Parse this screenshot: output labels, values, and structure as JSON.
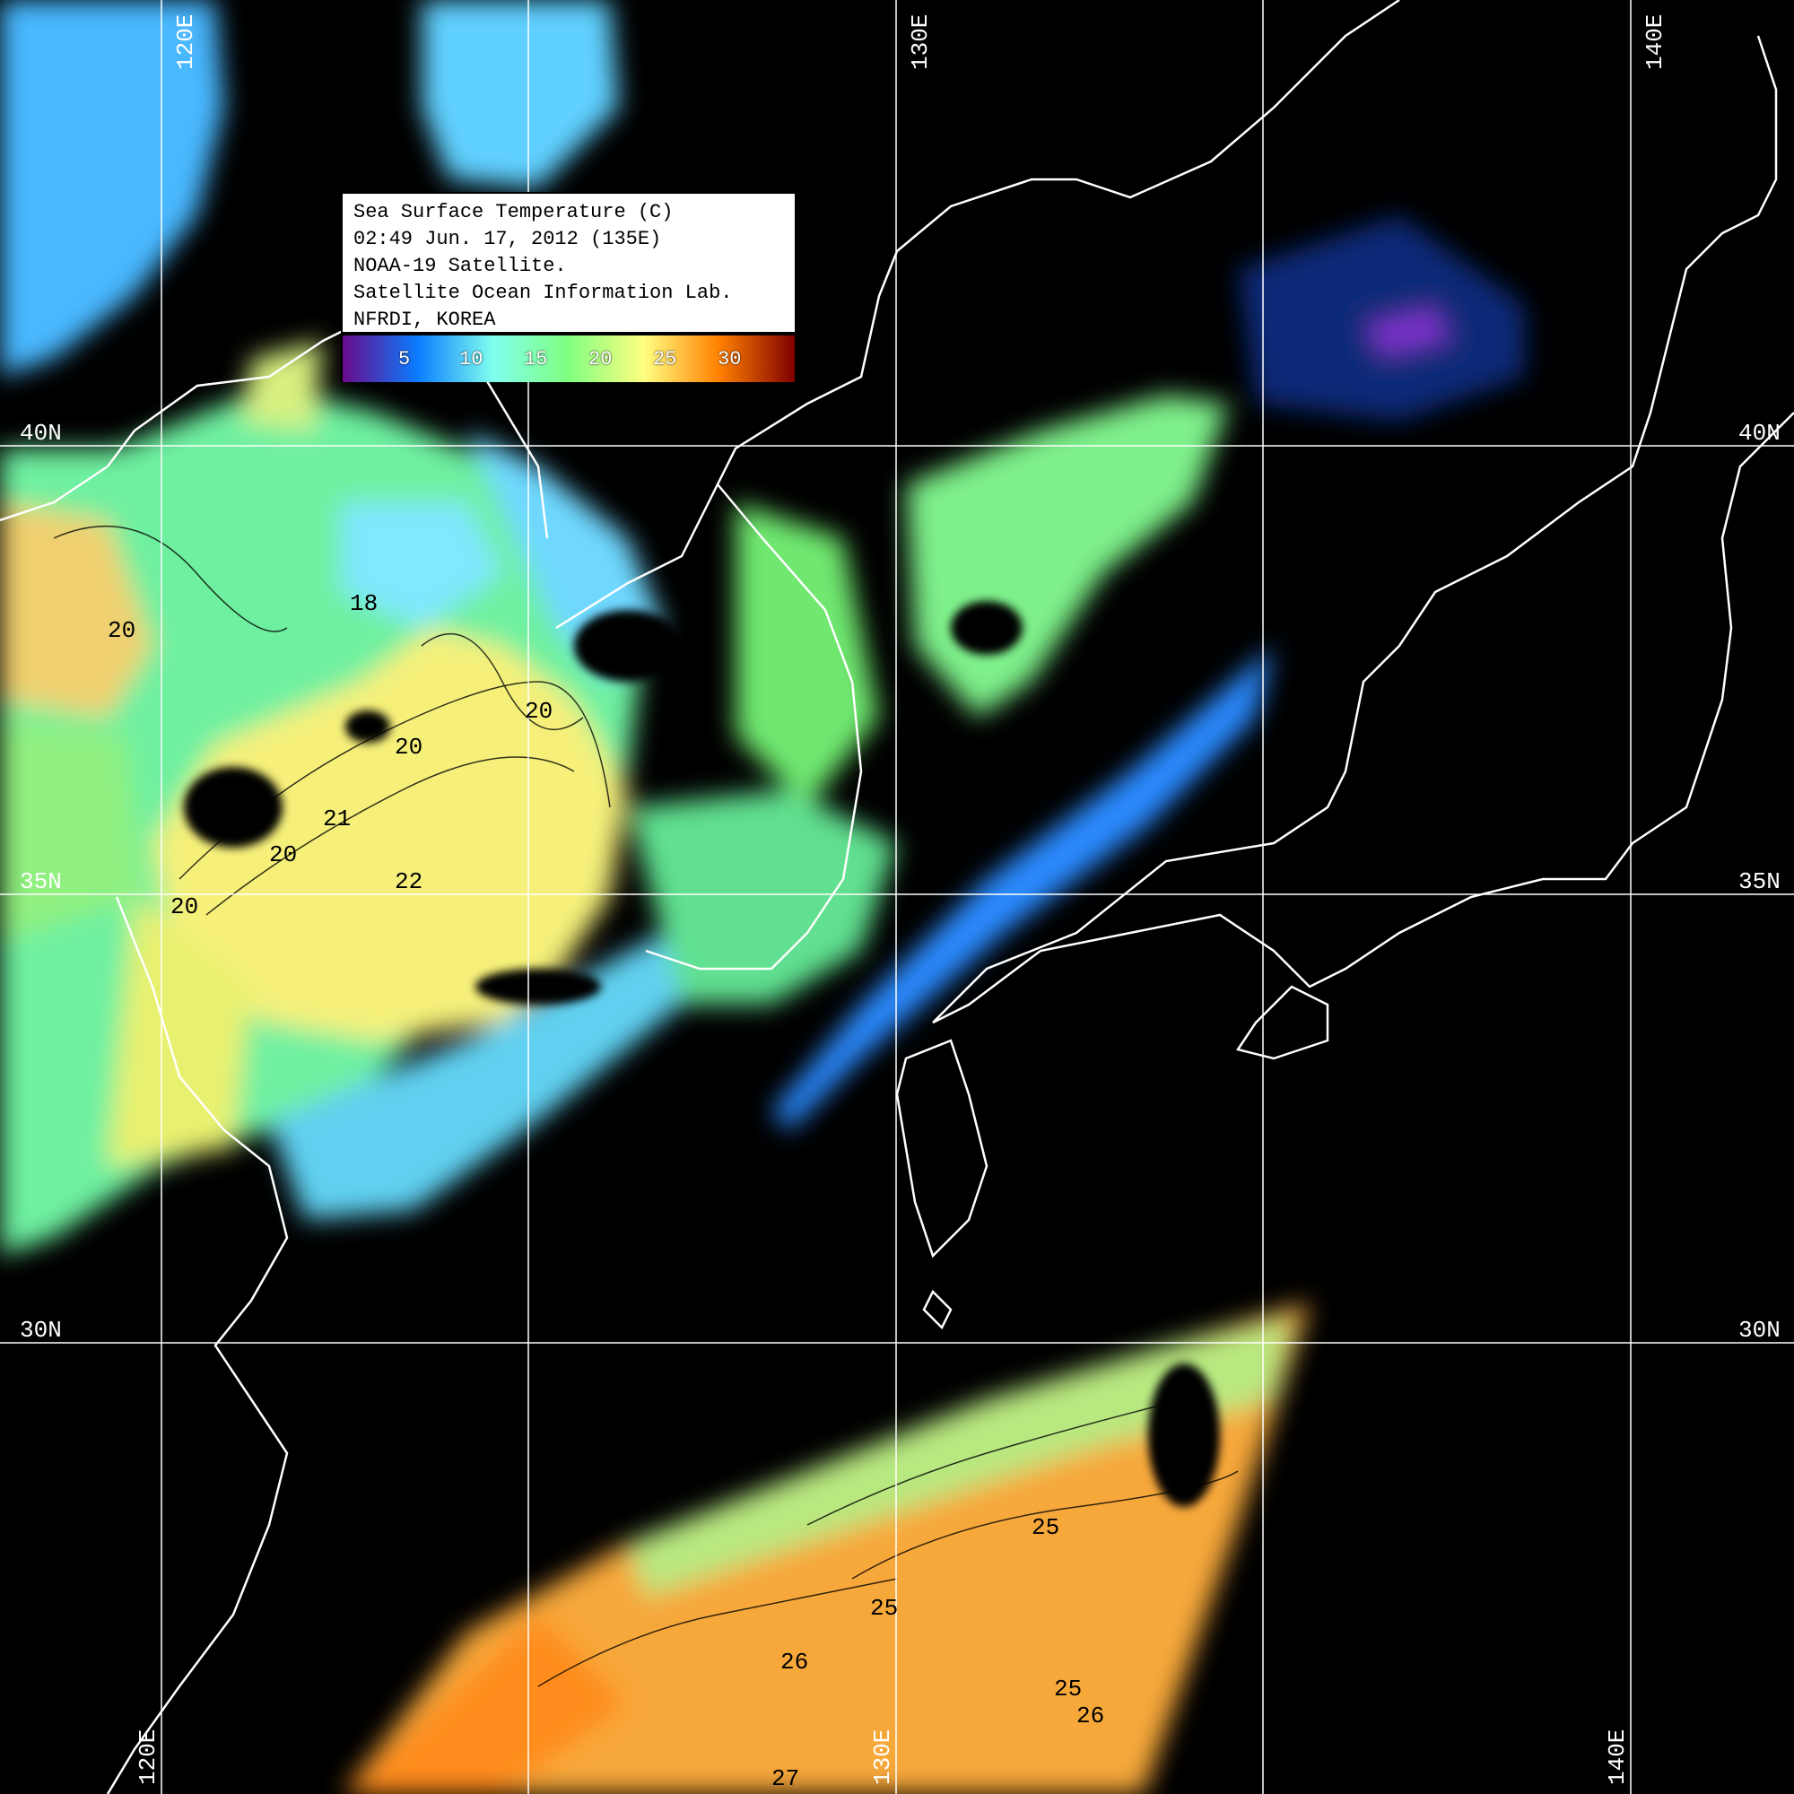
{
  "legend": {
    "lines": [
      "Sea Surface Temperature (C)",
      "02:49 Jun. 17, 2012 (135E)",
      "NOAA-19 Satellite.",
      "Satellite Ocean Information Lab.",
      "NFRDI, KOREA"
    ],
    "colorbar_ticks": [
      "5",
      "10",
      "15",
      "20",
      "25",
      "30"
    ],
    "colorbar_colors": [
      "#6a0a8a",
      "#0a7dff",
      "#80ffee",
      "#80ff80",
      "#ffff80",
      "#ff8000",
      "#800000"
    ]
  },
  "grid": {
    "lon_labels_top": [
      "120E",
      "130E",
      "140E"
    ],
    "lon_labels_bottom": [
      "120E",
      "130E",
      "140E"
    ],
    "lat_labels_left": [
      "40N",
      "35N",
      "30N"
    ],
    "lat_labels_right": [
      "40N",
      "35N",
      "30N"
    ]
  },
  "contour_labels": [
    "20",
    "20",
    "20",
    "20",
    "20",
    "18",
    "21",
    "22",
    "25",
    "25",
    "25",
    "26",
    "26",
    "27"
  ]
}
